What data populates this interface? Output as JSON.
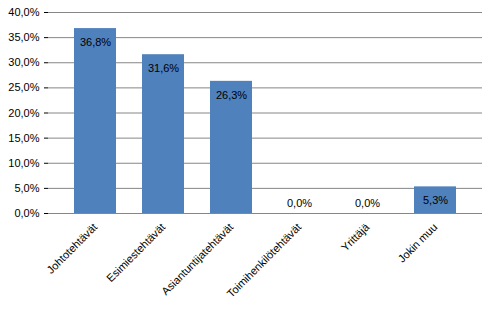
{
  "chart_data": {
    "type": "bar",
    "categories": [
      "Johtotehtävät",
      "Esimiestehtävät",
      "Asiantuntijatehtävät",
      "Toimihenkilötehtävät",
      "Yrittäjä",
      "Jokin muu"
    ],
    "values": [
      36.8,
      31.6,
      26.3,
      0.0,
      0.0,
      5.3
    ],
    "value_labels": [
      "36,8%",
      "31,6%",
      "26,3%",
      "0,0%",
      "0,0%",
      "5,3%"
    ],
    "data_labels": true,
    "color": "#4f81bd",
    "ylim": [
      0,
      40
    ],
    "yticks": [
      {
        "value": 0,
        "label": "0,0%"
      },
      {
        "value": 5,
        "label": "5,0%"
      },
      {
        "value": 10,
        "label": "10,0%"
      },
      {
        "value": 15,
        "label": "15,0%"
      },
      {
        "value": 20,
        "label": "20,0%"
      },
      {
        "value": 25,
        "label": "25,0%"
      },
      {
        "value": 30,
        "label": "30,0%"
      },
      {
        "value": 35,
        "label": "35,0%"
      },
      {
        "value": 40,
        "label": "40,0%"
      }
    ],
    "grid": true
  }
}
